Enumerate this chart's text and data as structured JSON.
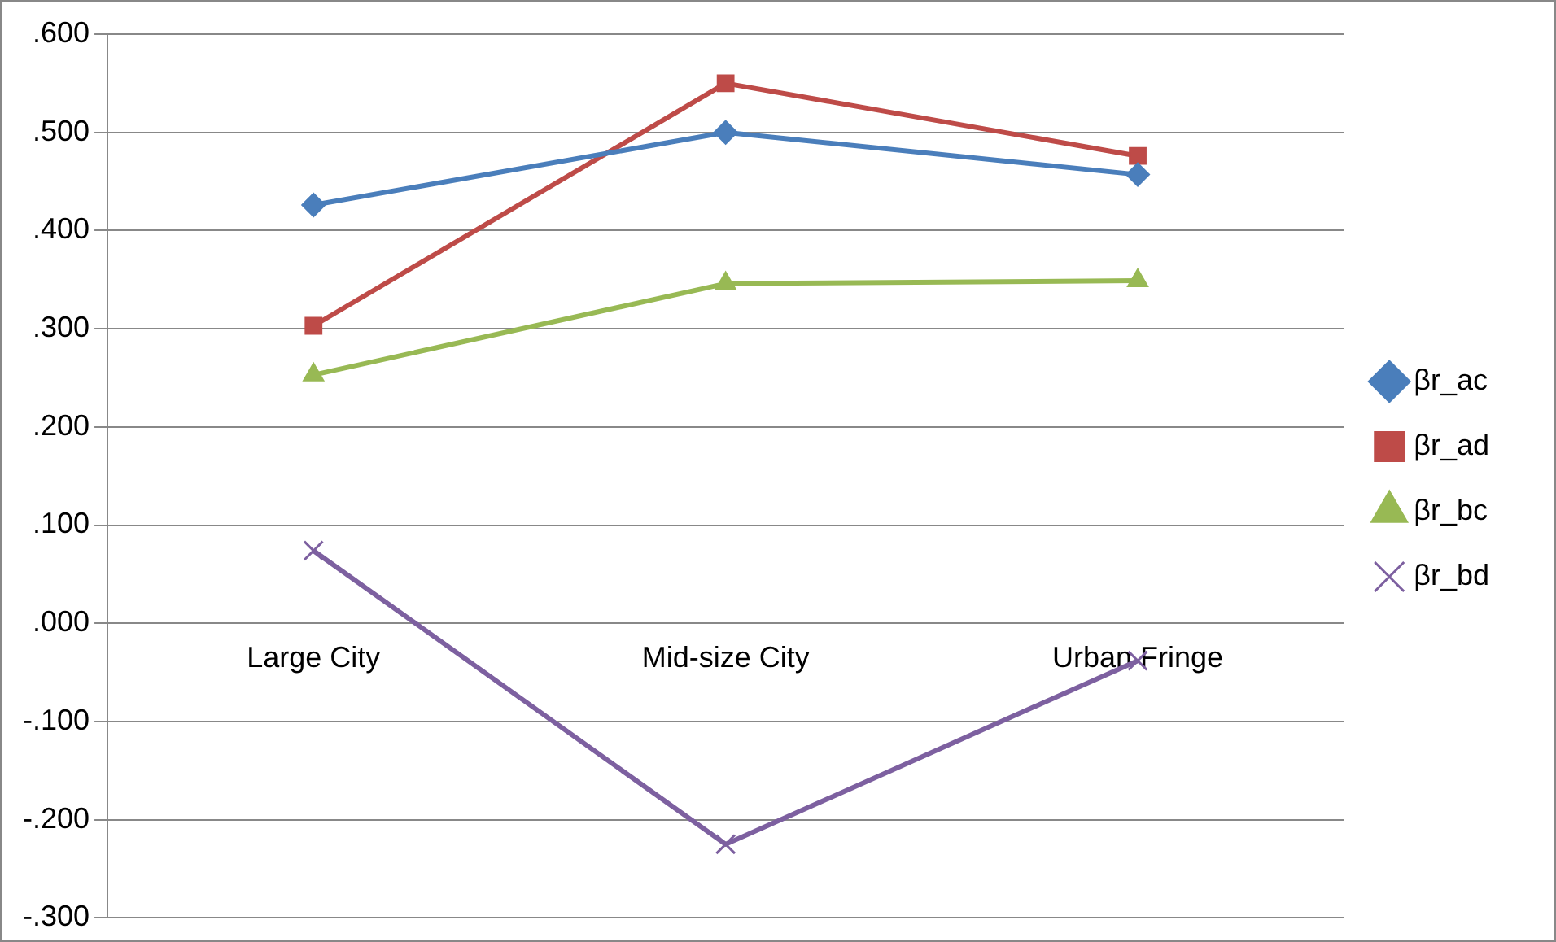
{
  "chart_data": {
    "type": "line",
    "categories": [
      "Large City",
      "Mid-size City",
      "Urban Fringe"
    ],
    "series": [
      {
        "name": "βr_ac",
        "color": "#4a7ebb",
        "marker": "diamond",
        "values": [
          0.426,
          0.5,
          0.457
        ]
      },
      {
        "name": "βr_ad",
        "color": "#be4b48",
        "marker": "square",
        "values": [
          0.303,
          0.55,
          0.476
        ]
      },
      {
        "name": "βr_bc",
        "color": "#98b954",
        "marker": "triangle",
        "values": [
          0.253,
          0.346,
          0.349
        ]
      },
      {
        "name": "βr_bd",
        "color": "#7d60a0",
        "marker": "cross",
        "values": [
          0.074,
          -0.225,
          -0.038
        ]
      }
    ],
    "ylim": [
      -0.3,
      0.6
    ],
    "yticks": [
      {
        "value": -0.3,
        "label": "-.300"
      },
      {
        "value": -0.2,
        "label": "-.200"
      },
      {
        "value": -0.1,
        "label": "-.100"
      },
      {
        "value": 0,
        "label": ".000"
      },
      {
        "value": 0.1,
        "label": ".100"
      },
      {
        "value": 0.2,
        "label": ".200"
      },
      {
        "value": 0.3,
        "label": ".300"
      },
      {
        "value": 0.4,
        "label": ".400"
      },
      {
        "value": 0.5,
        "label": ".500"
      },
      {
        "value": 0.6,
        "label": ".600"
      }
    ],
    "grid": "y",
    "legend": "right",
    "line_style": "solid"
  }
}
